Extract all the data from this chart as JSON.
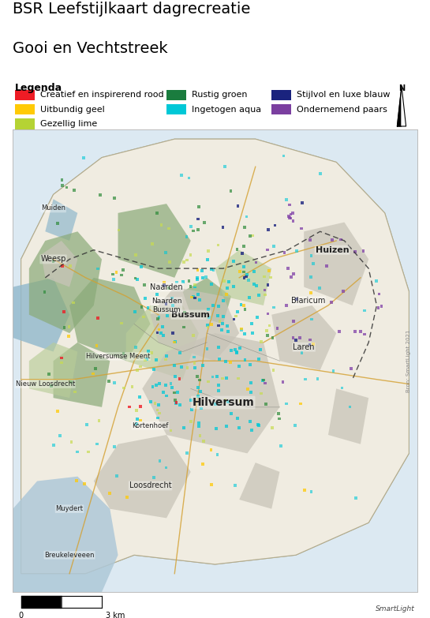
{
  "title_line1": "BSR Leefstijlkaart dagrecreatie",
  "title_line2": "Gooi en Vechtstreek",
  "legend_title": "Legenda",
  "legend_items": [
    {
      "label": "Creatief en inspirerend rood",
      "color": "#EE1C25"
    },
    {
      "label": "Uitbundig geel",
      "color": "#FFCA05"
    },
    {
      "label": "Gezellig lime",
      "color": "#B5D334"
    },
    {
      "label": "Rustig groen",
      "color": "#1A7C3E"
    },
    {
      "label": "Ingetogen aqua",
      "color": "#00C8D7"
    },
    {
      "label": "Stijlvol en luxe blauw",
      "color": "#1A237E"
    },
    {
      "label": "Ondernemend paars",
      "color": "#7B3FA0"
    }
  ],
  "scale_label": "3 km",
  "smartlight_text": "SmartLight",
  "background_color": "#ffffff",
  "title_fontsize": 14,
  "legend_fontsize": 8,
  "map_bg": "#e8eff5",
  "border_color": "#bbbbbb"
}
